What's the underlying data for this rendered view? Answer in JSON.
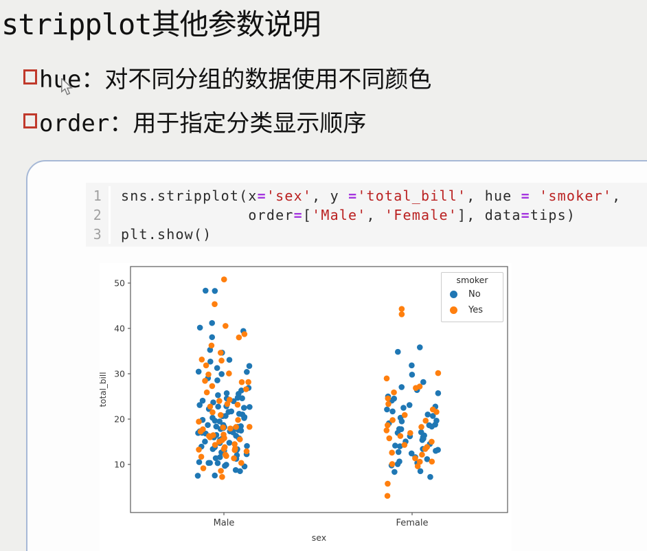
{
  "title": "stripplot其他参数说明",
  "bullets": [
    {
      "text": "hue：对不同分组的数据使用不同颜色"
    },
    {
      "text": "order：用于指定分类显示顺序"
    }
  ],
  "code": {
    "line_numbers": [
      "1",
      "2",
      "3"
    ],
    "lines": [
      [
        {
          "t": "sns.stripplot(x"
        },
        {
          "t": "=",
          "c": "op"
        },
        {
          "t": "'sex'",
          "c": "str"
        },
        {
          "t": ", y "
        },
        {
          "t": "=",
          "c": "op"
        },
        {
          "t": "'total_bill'",
          "c": "str"
        },
        {
          "t": ", hue "
        },
        {
          "t": "=",
          "c": "op"
        },
        {
          "t": " "
        },
        {
          "t": "'smoker'",
          "c": "str"
        },
        {
          "t": ","
        }
      ],
      [
        {
          "t": "              order"
        },
        {
          "t": "=",
          "c": "op"
        },
        {
          "t": "["
        },
        {
          "t": "'Male'",
          "c": "str"
        },
        {
          "t": ", "
        },
        {
          "t": "'Female'",
          "c": "str"
        },
        {
          "t": "], data"
        },
        {
          "t": "=",
          "c": "op"
        },
        {
          "t": "tips)"
        }
      ],
      [
        {
          "t": "plt.show()"
        }
      ]
    ]
  },
  "chart_data": {
    "type": "scatter",
    "subtype": "stripplot",
    "title": "",
    "xlabel": "sex",
    "ylabel": "total_bill",
    "categories": [
      "Male",
      "Female"
    ],
    "yticks": [
      10,
      20,
      30,
      40,
      50
    ],
    "ylim": [
      -0.6,
      53.6
    ],
    "grid": false,
    "legend": {
      "title": "smoker",
      "position": "upper right",
      "entries": [
        {
          "label": "No",
          "color": "#1f77b4"
        },
        {
          "label": "Yes",
          "color": "#ff7f0e"
        }
      ]
    },
    "series": [
      {
        "name": "Male / smoker=No",
        "category": "Male",
        "hue": "No",
        "color": "#1f77b4",
        "values": [
          7.51,
          7.56,
          8.52,
          8.77,
          9.55,
          9.68,
          9.94,
          10.29,
          10.33,
          10.34,
          10.51,
          11.24,
          11.38,
          11.59,
          12.02,
          12.26,
          12.66,
          13.03,
          13.13,
          13.28,
          13.37,
          13.39,
          13.81,
          13.94,
          14.07,
          14.73,
          14.78,
          15.04,
          15.42,
          15.69,
          15.77,
          15.98,
          16.29,
          16.31,
          16.49,
          16.82,
          16.93,
          16.97,
          17.07,
          17.29,
          17.31,
          17.46,
          17.59,
          17.81,
          17.92,
          18.04,
          18.24,
          18.29,
          18.35,
          18.43,
          18.69,
          18.71,
          19.49,
          19.65,
          19.82,
          20.23,
          20.29,
          20.45,
          20.65,
          20.69,
          21.01,
          21.16,
          21.58,
          21.7,
          22.23,
          22.49,
          22.67,
          22.75,
          22.82,
          23.1,
          23.68,
          23.95,
          24.06,
          24.55,
          24.59,
          24.71,
          25.28,
          25.56,
          25.71,
          26.31,
          26.88,
          28.55,
          29.03,
          29.93,
          30.4,
          30.46,
          31.27,
          31.71,
          32.68,
          33.07,
          34.65,
          35.26,
          38.07,
          39.42,
          40.17,
          41.19,
          48.27,
          48.33
        ]
      },
      {
        "name": "Male / smoker=Yes",
        "category": "Male",
        "hue": "Yes",
        "color": "#ff7f0e",
        "values": [
          7.25,
          8.58,
          9.16,
          10.34,
          11.35,
          11.69,
          11.87,
          12.16,
          12.9,
          13.16,
          13.27,
          13.42,
          13.51,
          13.81,
          14.31,
          14.48,
          15.01,
          15.36,
          15.53,
          15.81,
          16.0,
          16.27,
          16.45,
          16.58,
          17.26,
          17.76,
          17.92,
          18.15,
          18.26,
          18.29,
          19.44,
          19.81,
          20.9,
          21.5,
          22.76,
          23.17,
          23.33,
          24.01,
          24.27,
          25.89,
          26.59,
          27.28,
          28.15,
          28.17,
          28.44,
          29.85,
          30.06,
          31.85,
          32.9,
          33.14,
          34.63,
          36.23,
          38.01,
          38.73,
          40.55,
          45.35,
          50.81
        ]
      },
      {
        "name": "Female / smoker=No",
        "category": "Female",
        "hue": "No",
        "color": "#1f77b4",
        "values": [
          7.25,
          8.35,
          8.51,
          9.78,
          10.07,
          10.33,
          10.65,
          11.17,
          11.61,
          12.43,
          12.74,
          13.0,
          13.21,
          13.42,
          14.0,
          14.15,
          14.52,
          15.06,
          15.38,
          15.69,
          15.98,
          16.21,
          16.4,
          16.97,
          17.1,
          17.78,
          17.82,
          18.35,
          18.64,
          18.78,
          19.08,
          19.49,
          19.65,
          20.29,
          20.69,
          21.01,
          21.7,
          22.12,
          22.49,
          22.75,
          23.1,
          24.08,
          24.52,
          25.0,
          25.71,
          26.41,
          27.05,
          28.17,
          29.8,
          31.85,
          34.83,
          35.83
        ]
      },
      {
        "name": "Female / smoker=Yes",
        "category": "Female",
        "hue": "Yes",
        "color": "#ff7f0e",
        "values": [
          3.07,
          5.75,
          9.6,
          10.09,
          10.59,
          10.63,
          11.35,
          12.16,
          12.6,
          13.42,
          13.86,
          14.31,
          15.01,
          15.77,
          16.27,
          16.93,
          17.51,
          18.26,
          18.64,
          19.65,
          19.78,
          20.9,
          21.58,
          22.12,
          23.33,
          24.55,
          25.89,
          26.86,
          27.18,
          28.97,
          30.14,
          43.11,
          44.3
        ]
      }
    ]
  },
  "colors": {
    "dot_blue": "#1f77b4",
    "dot_orange": "#ff7f0e",
    "bullet_red": "#c0392b",
    "panel_border": "#a6b8d6",
    "code_bg": "#f5f5f5",
    "string_red": "#ba2121",
    "operator_purple": "#a435df",
    "page_bg": "#efefed"
  }
}
